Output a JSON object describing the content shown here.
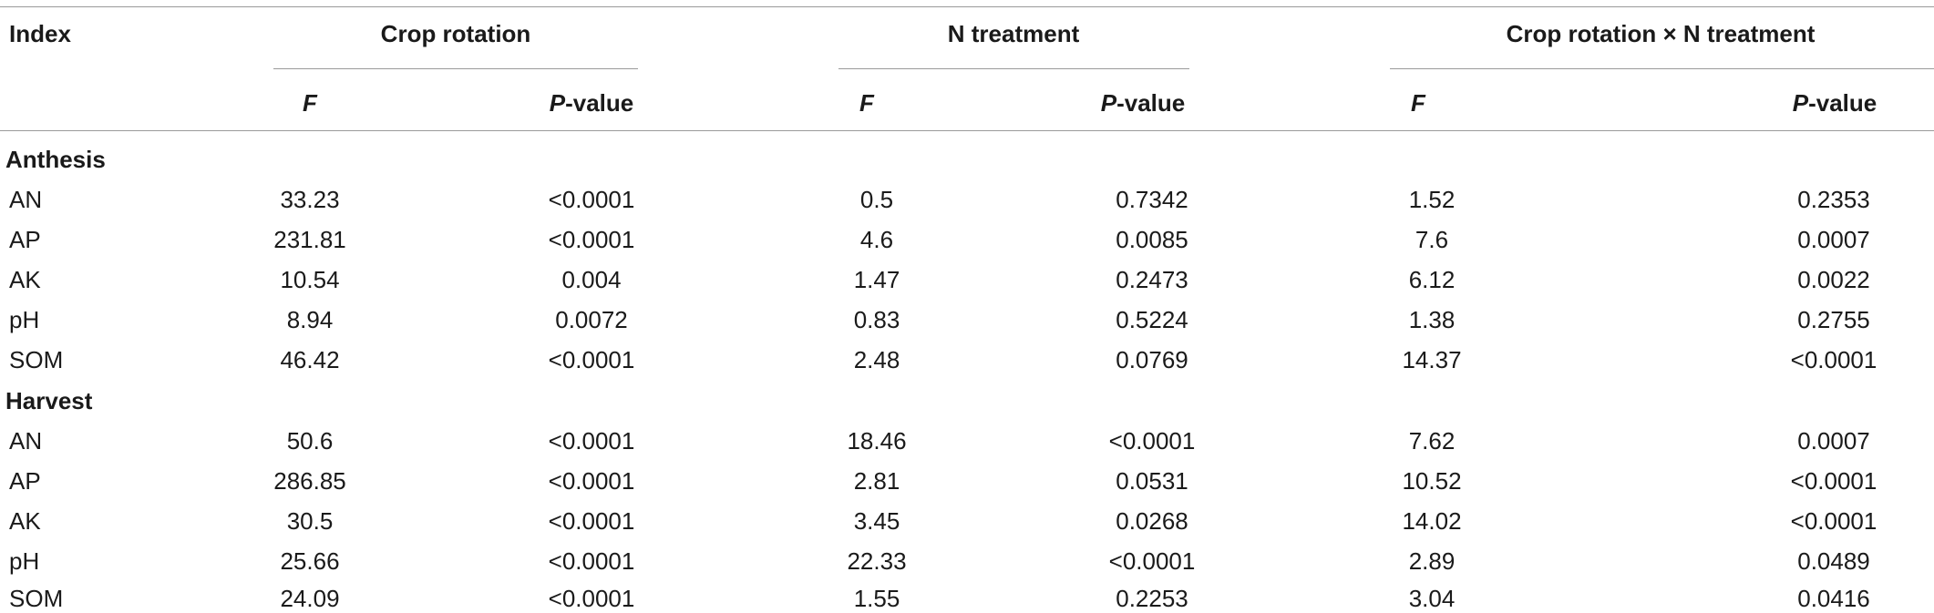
{
  "table": {
    "header": {
      "index": "Index",
      "groups": [
        "Crop rotation",
        "N treatment",
        "Crop rotation × N treatment"
      ],
      "f_label": "F",
      "p_label": "P",
      "p_suffix": "-value"
    },
    "sections": [
      {
        "name": "Anthesis",
        "rows": [
          {
            "index": "AN",
            "values": [
              "33.23",
              "<0.0001",
              "0.5",
              "0.7342",
              "1.52",
              "0.2353"
            ]
          },
          {
            "index": "AP",
            "values": [
              "231.81",
              "<0.0001",
              "4.6",
              "0.0085",
              "7.6",
              "0.0007"
            ]
          },
          {
            "index": "AK",
            "values": [
              "10.54",
              "0.004",
              "1.47",
              "0.2473",
              "6.12",
              "0.0022"
            ]
          },
          {
            "index": "pH",
            "values": [
              "8.94",
              "0.0072",
              "0.83",
              "0.5224",
              "1.38",
              "0.2755"
            ]
          },
          {
            "index": "SOM",
            "values": [
              "46.42",
              "<0.0001",
              "2.48",
              "0.0769",
              "14.37",
              "<0.0001"
            ]
          }
        ]
      },
      {
        "name": "Harvest",
        "rows": [
          {
            "index": "AN",
            "values": [
              "50.6",
              "<0.0001",
              "18.46",
              "<0.0001",
              "7.62",
              "0.0007"
            ]
          },
          {
            "index": "AP",
            "values": [
              "286.85",
              "<0.0001",
              "2.81",
              "0.0531",
              "10.52",
              "<0.0001"
            ]
          },
          {
            "index": "AK",
            "values": [
              "30.5",
              "<0.0001",
              "3.45",
              "0.0268",
              "14.02",
              "<0.0001"
            ]
          },
          {
            "index": "pH",
            "values": [
              "25.66",
              "<0.0001",
              "22.33",
              "<0.0001",
              "2.89",
              "0.0489"
            ]
          },
          {
            "index": "SOM",
            "values": [
              "24.09",
              "<0.0001",
              "1.55",
              "0.2253",
              "3.04",
              "0.0416"
            ]
          }
        ]
      }
    ]
  }
}
